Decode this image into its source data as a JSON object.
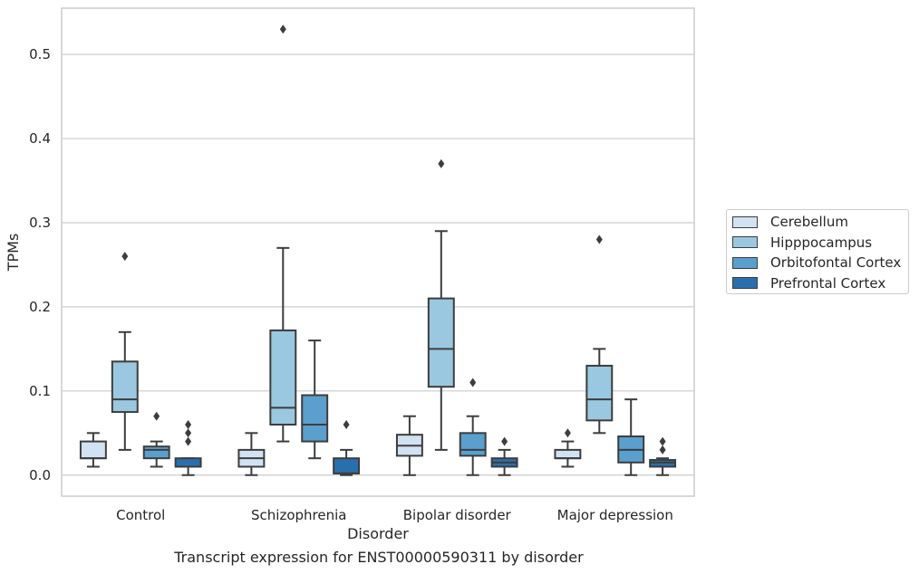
{
  "chart_data": {
    "type": "box",
    "title": "Transcript expression for ENST00000590311 by disorder",
    "xlabel": "Disorder",
    "ylabel": "TPMs",
    "ylim": [
      -0.025,
      0.555
    ],
    "yticks": [
      0.0,
      0.1,
      0.2,
      0.3,
      0.4,
      0.5
    ],
    "ytick_labels": [
      "0.0",
      "0.1",
      "0.2",
      "0.3",
      "0.4",
      "0.5"
    ],
    "grid": "horizontal",
    "legend_position": "right",
    "categories": [
      "Control",
      "Schizophrenia",
      "Bipolar disorder",
      "Major depression"
    ],
    "series": [
      {
        "name": "Cerebellum",
        "color": "#d1e2f2",
        "boxes": [
          {
            "whisker_low": 0.01,
            "q1": 0.02,
            "median": 0.02,
            "q3": 0.04,
            "whisker_high": 0.05,
            "outliers": []
          },
          {
            "whisker_low": 0.0,
            "q1": 0.01,
            "median": 0.02,
            "q3": 0.03,
            "whisker_high": 0.05,
            "outliers": []
          },
          {
            "whisker_low": 0.0,
            "q1": 0.023,
            "median": 0.035,
            "q3": 0.048,
            "whisker_high": 0.07,
            "outliers": []
          },
          {
            "whisker_low": 0.01,
            "q1": 0.02,
            "median": 0.02,
            "q3": 0.03,
            "whisker_high": 0.04,
            "outliers": [
              0.05
            ]
          }
        ]
      },
      {
        "name": "Hipppocampus",
        "color": "#9ac8e0",
        "boxes": [
          {
            "whisker_low": 0.03,
            "q1": 0.075,
            "median": 0.09,
            "q3": 0.135,
            "whisker_high": 0.17,
            "outliers": [
              0.26
            ]
          },
          {
            "whisker_low": 0.04,
            "q1": 0.06,
            "median": 0.08,
            "q3": 0.172,
            "whisker_high": 0.27,
            "outliers": [
              0.53
            ]
          },
          {
            "whisker_low": 0.03,
            "q1": 0.105,
            "median": 0.15,
            "q3": 0.21,
            "whisker_high": 0.29,
            "outliers": [
              0.37
            ]
          },
          {
            "whisker_low": 0.05,
            "q1": 0.065,
            "median": 0.09,
            "q3": 0.13,
            "whisker_high": 0.15,
            "outliers": [
              0.28
            ]
          }
        ]
      },
      {
        "name": "Orbitofontal Cortex",
        "color": "#5a9fcd",
        "boxes": [
          {
            "whisker_low": 0.01,
            "q1": 0.02,
            "median": 0.03,
            "q3": 0.034,
            "whisker_high": 0.04,
            "outliers": [
              0.07
            ]
          },
          {
            "whisker_low": 0.02,
            "q1": 0.04,
            "median": 0.06,
            "q3": 0.095,
            "whisker_high": 0.16,
            "outliers": []
          },
          {
            "whisker_low": 0.0,
            "q1": 0.023,
            "median": 0.03,
            "q3": 0.05,
            "whisker_high": 0.07,
            "outliers": [
              0.11
            ]
          },
          {
            "whisker_low": 0.0,
            "q1": 0.015,
            "median": 0.03,
            "q3": 0.046,
            "whisker_high": 0.09,
            "outliers": []
          }
        ]
      },
      {
        "name": "Prefrontal Cortex",
        "color": "#2a6fad",
        "boxes": [
          {
            "whisker_low": 0.0,
            "q1": 0.01,
            "median": 0.01,
            "q3": 0.02,
            "whisker_high": 0.02,
            "outliers": [
              0.04,
              0.05,
              0.06
            ]
          },
          {
            "whisker_low": 0.0,
            "q1": 0.002,
            "median": 0.002,
            "q3": 0.02,
            "whisker_high": 0.03,
            "outliers": [
              0.06
            ]
          },
          {
            "whisker_low": 0.0,
            "q1": 0.01,
            "median": 0.015,
            "q3": 0.02,
            "whisker_high": 0.03,
            "outliers": [
              0.04
            ]
          },
          {
            "whisker_low": 0.0,
            "q1": 0.01,
            "median": 0.015,
            "q3": 0.018,
            "whisker_high": 0.02,
            "outliers": [
              0.03,
              0.04
            ]
          }
        ]
      }
    ]
  }
}
